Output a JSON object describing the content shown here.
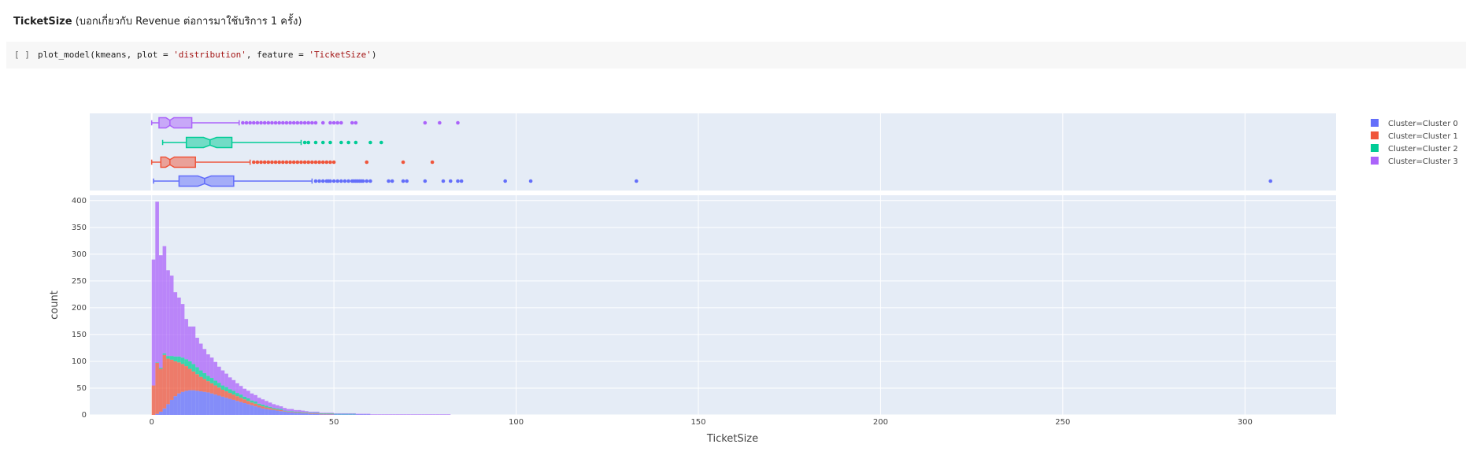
{
  "markdown": {
    "bold": "TicketSize",
    "rest": " (บอกเกี่ยวกับ Revenue ต่อการมาใช้บริการ 1 ครั้ง)"
  },
  "code_cell": {
    "prompt": "[ ]",
    "code_prefix": "plot_model(kmeans, plot = ",
    "arg1": "'distribution'",
    "code_mid": ", feature = ",
    "arg2": "'TicketSize'",
    "code_suffix": ")"
  },
  "chart_data": {
    "type": "histogram",
    "barmode": "stack",
    "xlabel": "TicketSize",
    "ylabel": "count",
    "xlim": [
      -17,
      325
    ],
    "ylim": [
      0,
      410
    ],
    "x_ticks": [
      0,
      50,
      100,
      150,
      200,
      250,
      300
    ],
    "y_ticks": [
      0,
      50,
      100,
      150,
      200,
      250,
      300,
      350,
      400
    ],
    "grid": true,
    "legend_position": "top-right",
    "bin_width": 1,
    "series": [
      {
        "name": "Cluster=Cluster 0",
        "color": "#636efa",
        "box": {
          "min": 0.5,
          "q1": 7.5,
          "median": 14.5,
          "q3": 22.5,
          "upper_fence": 44,
          "notch": 1.8,
          "outliers": [
            45,
            46,
            47,
            48,
            48.5,
            49,
            50,
            51,
            52,
            53,
            54,
            55,
            55.5,
            56,
            56.5,
            57,
            57.5,
            58,
            59,
            60,
            65,
            66,
            69,
            70,
            75,
            80,
            82,
            84,
            85,
            97,
            104,
            133,
            307
          ]
        },
        "hist": {
          "start": 0,
          "values": [
            0,
            2,
            6,
            12,
            20,
            28,
            35,
            40,
            43,
            45,
            46,
            46,
            45,
            44,
            43,
            42,
            40,
            38,
            36,
            34,
            32,
            30,
            28,
            26,
            24,
            22,
            20,
            18,
            16,
            14,
            12,
            11,
            10,
            9,
            8,
            7,
            6,
            5,
            5,
            4,
            4,
            3,
            3,
            2,
            2,
            2,
            1,
            1,
            1,
            1,
            1,
            1,
            1,
            1,
            1,
            1,
            1,
            1,
            1,
            1
          ]
        }
      },
      {
        "name": "Cluster=Cluster 1",
        "color": "#ef553b",
        "box": {
          "min": 0,
          "q1": 2.5,
          "median": 5,
          "q3": 12,
          "upper_fence": 27,
          "notch": 1.2,
          "outliers": [
            28,
            29,
            30,
            31,
            32,
            33,
            34,
            35,
            36,
            37,
            38,
            39,
            40,
            41,
            42,
            43,
            44,
            45,
            46,
            47,
            48,
            49,
            50,
            59,
            69,
            77
          ]
        },
        "hist": {
          "start": 0,
          "values": [
            55,
            95,
            80,
            100,
            85,
            75,
            65,
            58,
            52,
            46,
            40,
            35,
            31,
            27,
            24,
            21,
            19,
            17,
            15,
            13,
            12,
            11,
            10,
            9,
            8,
            7,
            6,
            5,
            5,
            4,
            4,
            3,
            3,
            2,
            2,
            2,
            1,
            1,
            1,
            1,
            1,
            1,
            1,
            1,
            1,
            1,
            1,
            1,
            1,
            1
          ]
        }
      },
      {
        "name": "Cluster=Cluster 2",
        "color": "#00cc96",
        "box": {
          "min": 3,
          "q1": 9.5,
          "median": 16,
          "q3": 22,
          "upper_fence": 41,
          "notch": 1.8,
          "outliers": [
            42,
            43,
            45,
            47,
            49,
            52,
            54,
            56,
            60,
            63
          ]
        },
        "hist": {
          "start": 0,
          "values": [
            0,
            1,
            2,
            3,
            5,
            7,
            9,
            11,
            12,
            13,
            14,
            14,
            13,
            12,
            11,
            10,
            10,
            9,
            9,
            8,
            8,
            7,
            7,
            6,
            6,
            5,
            5,
            4,
            4,
            3,
            3,
            3,
            2,
            2,
            2,
            2,
            1,
            1,
            1,
            1,
            1,
            1,
            1,
            1,
            1,
            1,
            1,
            1,
            1,
            1,
            1,
            1,
            1,
            1,
            1,
            1
          ]
        }
      },
      {
        "name": "Cluster=Cluster 3",
        "color": "#ab63fa",
        "box": {
          "min": 0,
          "q1": 2,
          "median": 5,
          "q3": 11,
          "upper_fence": 24,
          "notch": 1.1,
          "outliers": [
            25,
            26,
            27,
            28,
            29,
            30,
            31,
            32,
            33,
            34,
            35,
            36,
            37,
            38,
            39,
            40,
            41,
            42,
            43,
            44,
            45,
            47,
            49,
            50,
            51,
            52,
            55,
            56,
            75,
            79,
            84
          ]
        },
        "hist": {
          "start": 0,
          "values": [
            235,
            300,
            210,
            200,
            160,
            150,
            120,
            110,
            100,
            75,
            65,
            70,
            55,
            50,
            45,
            40,
            38,
            35,
            30,
            28,
            25,
            22,
            20,
            18,
            16,
            15,
            14,
            13,
            12,
            11,
            10,
            9,
            8,
            7,
            6,
            5,
            5,
            4,
            4,
            3,
            3,
            3,
            2,
            2,
            2,
            2,
            1,
            1,
            1,
            1,
            1,
            1,
            1,
            1,
            1,
            1,
            1,
            1,
            1,
            1,
            1,
            1,
            1,
            1,
            1,
            1,
            1,
            1,
            1,
            1,
            1,
            1,
            1,
            1,
            1,
            1,
            1,
            1,
            1,
            1,
            1,
            1
          ]
        }
      }
    ]
  }
}
